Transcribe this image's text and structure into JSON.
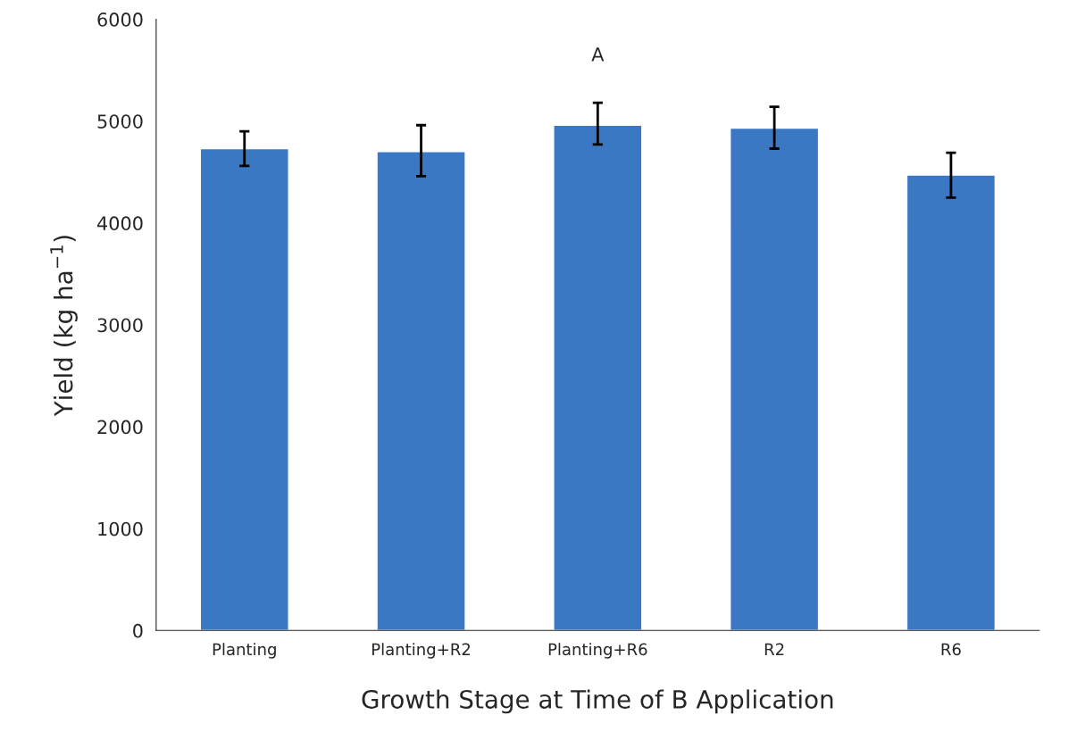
{
  "chart_data": {
    "type": "bar",
    "xlabel": "Growth Stage at Time of B Application",
    "ylabel": "Yield (kg ha$^{−1}$)",
    "categories": [
      "Planting",
      "Planting+R2",
      "Planting+R6",
      "R2",
      "R6"
    ],
    "values": [
      4730,
      4700,
      4960,
      4930,
      4470
    ],
    "errors": [
      [
        4560,
        4900
      ],
      [
        4460,
        4960
      ],
      [
        4770,
        5180
      ],
      [
        4730,
        5140
      ],
      [
        4250,
        4690
      ]
    ],
    "color": "#3a78c4",
    "ylim": [
      0,
      6000
    ],
    "yticks": [
      0,
      1000,
      2000,
      3000,
      4000,
      5000,
      6000
    ],
    "annotations": [
      "A"
    ],
    "grid": false,
    "legend": false
  }
}
